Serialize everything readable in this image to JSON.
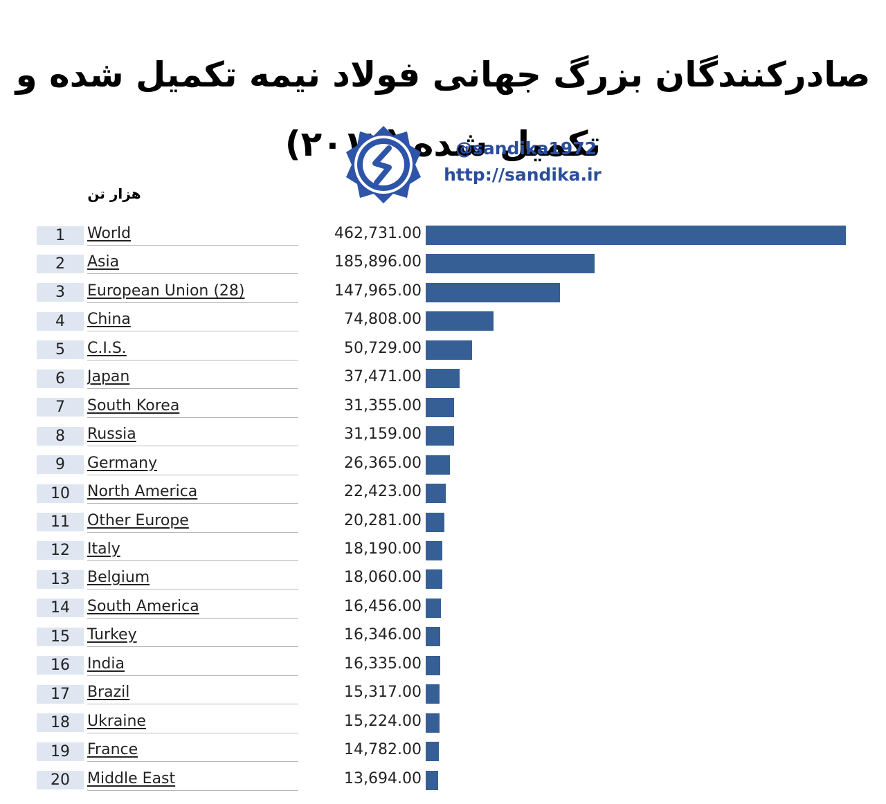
{
  "title": "صادرکنندگان بزرگ جهانی فولاد نیمه تکمیل شده و تکمیل شده (۲۰۱۷)",
  "brand": {
    "handle": "@sandika1972",
    "website": "http://sandika.ir"
  },
  "unit_label": "هزار تن",
  "colors": {
    "bar": "#365f96",
    "rank_bg": "#dfe6f1",
    "brand_text": "#2a4d9e"
  },
  "chart_data": {
    "type": "bar",
    "orientation": "horizontal",
    "title": "صادرکنندگان بزرگ جهانی فولاد نیمه تکمیل شده و تکمیل شده (۲۰۱۷)",
    "unit": "هزار تن",
    "xlim": [
      0,
      462731
    ],
    "grid": false,
    "legend": "none",
    "ranks": [
      1,
      2,
      3,
      4,
      5,
      6,
      7,
      8,
      9,
      10,
      11,
      12,
      13,
      14,
      15,
      16,
      17,
      18,
      19,
      20
    ],
    "categories": [
      "World",
      "Asia",
      "European Union (28)",
      "China",
      "C.I.S.",
      "Japan",
      "South Korea",
      "Russia",
      "Germany",
      "North America",
      "Other Europe",
      "Italy",
      "Belgium",
      "South America",
      "Turkey",
      "India",
      "Brazil",
      "Ukraine",
      "France",
      "Middle East"
    ],
    "value_labels": [
      "462,731.00",
      "185,896.00",
      "147,965.00",
      "74,808.00",
      "50,729.00",
      "37,471.00",
      "31,355.00",
      "31,159.00",
      "26,365.00",
      "22,423.00",
      "20,281.00",
      "18,190.00",
      "18,060.00",
      "16,456.00",
      "16,346.00",
      "16,335.00",
      "15,317.00",
      "15,224.00",
      "14,782.00",
      "13,694.00"
    ],
    "values": [
      462731,
      185896,
      147965,
      74808,
      50729,
      37471,
      31355,
      31159,
      26365,
      22423,
      20281,
      18190,
      18060,
      16456,
      16346,
      16335,
      15317,
      15224,
      14782,
      13694
    ]
  }
}
